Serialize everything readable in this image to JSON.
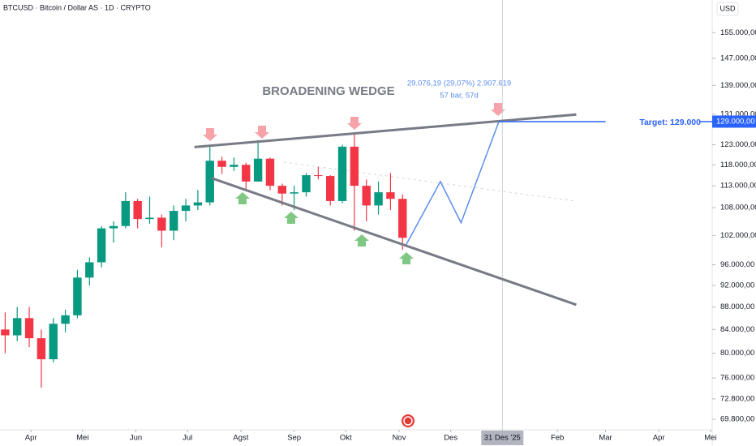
{
  "header": {
    "symbol": "BTCUSD · Bitcoin / Dollar AS · 1D · CRYPTO",
    "currency": "USD"
  },
  "chart_data": {
    "type": "candlestick",
    "log_scale": true,
    "up_color": "#089981",
    "down_color": "#f23645",
    "x": [
      76,
      83,
      90,
      97,
      104,
      111,
      118,
      125,
      132,
      139,
      146,
      153,
      160,
      167,
      174,
      181,
      188,
      195,
      202,
      209,
      216,
      223,
      230,
      237,
      244,
      251,
      258,
      265,
      272,
      279,
      286,
      293,
      300,
      307
    ],
    "open": [
      84000,
      83000,
      86000,
      82500,
      79000,
      85000,
      86500,
      93500,
      96500,
      103500,
      104000,
      109500,
      105500,
      105800,
      103000,
      107300,
      108500,
      109200,
      119000,
      117500,
      118000,
      114000,
      119500,
      113000,
      111200,
      111500,
      115500,
      115300,
      109500,
      122500,
      113000,
      108500,
      111500,
      110000
    ],
    "high": [
      87000,
      88000,
      88000,
      84000,
      86000,
      87500,
      95000,
      97500,
      104000,
      105000,
      111500,
      110000,
      110500,
      106500,
      108500,
      110000,
      112000,
      123000,
      120000,
      119800,
      118500,
      124200,
      119800,
      113500,
      113000,
      116000,
      117500,
      115500,
      123000,
      126000,
      114500,
      114000,
      116000,
      111000
    ],
    "low": [
      80000,
      82000,
      81000,
      74500,
      78500,
      83500,
      86000,
      92000,
      95500,
      100500,
      103500,
      103500,
      104500,
      99500,
      101000,
      105000,
      107500,
      108500,
      115800,
      116500,
      112000,
      114000,
      112000,
      108500,
      107500,
      110500,
      114500,
      108500,
      109000,
      103000,
      105000,
      106500,
      107500,
      99000
    ],
    "close": [
      83000,
      86000,
      82500,
      79000,
      85000,
      86500,
      93500,
      96500,
      103500,
      104000,
      109500,
      105500,
      105800,
      103000,
      107300,
      108500,
      109200,
      119000,
      117500,
      118000,
      114000,
      119500,
      113000,
      111200,
      111500,
      115500,
      115300,
      109500,
      122500,
      113000,
      108500,
      111500,
      110000,
      101500
    ],
    "xlim": [
      73,
      487
    ],
    "ylim": [
      68300,
      165800
    ],
    "xticks": [
      {
        "value": 91,
        "label": "Apr"
      },
      {
        "value": 121,
        "label": "Mei"
      },
      {
        "value": 152,
        "label": "Jun"
      },
      {
        "value": 182,
        "label": "Jul"
      },
      {
        "value": 213,
        "label": "Agst"
      },
      {
        "value": 244,
        "label": "Sep"
      },
      {
        "value": 274,
        "label": "Okt"
      },
      {
        "value": 305,
        "label": "Nov"
      },
      {
        "value": 335,
        "label": "Des"
      },
      {
        "value": 365,
        "label": "31 Des '25"
      },
      {
        "value": 397,
        "label": "Feb"
      },
      {
        "value": 425,
        "label": "Mar"
      },
      {
        "value": 456,
        "label": "Apr"
      },
      {
        "value": 486,
        "label": "Mei"
      }
    ],
    "yticks": [
      {
        "value": 155000,
        "label": "155.000,00"
      },
      {
        "value": 147000,
        "label": "147.000,00"
      },
      {
        "value": 139000,
        "label": "139.000,00"
      },
      {
        "value": 131000,
        "label": "131.000,00"
      },
      {
        "value": 123000,
        "label": "123.000,00"
      },
      {
        "value": 118000,
        "label": "118.000,00"
      },
      {
        "value": 113000,
        "label": "113.000,00"
      },
      {
        "value": 108000,
        "label": "108.000,00"
      },
      {
        "value": 102000,
        "label": "102.000,00"
      },
      {
        "value": 96000,
        "label": "96.000,00"
      },
      {
        "value": 92000,
        "label": "92.000,00"
      },
      {
        "value": 88000,
        "label": "88.000,00"
      },
      {
        "value": 84000,
        "label": "84.000,00"
      },
      {
        "value": 80000,
        "label": "80.000,00"
      },
      {
        "value": 76000,
        "label": "76.000,00"
      },
      {
        "value": 72800,
        "label": "72.800,00"
      },
      {
        "value": 69800,
        "label": "69.800,00"
      }
    ],
    "crosshair_x": 365,
    "annotations": {
      "pattern": "BROADENING WEDGE",
      "measure_line1": "29.076,19 (29,07%) 2.907.619",
      "measure_line2": "57 bar, 57d"
    },
    "upper_line": {
      "x": [
        186,
        408
      ],
      "y": [
        122400,
        130900
      ],
      "color": "#787b86"
    },
    "lower_line": {
      "x": [
        196,
        408
      ],
      "y": [
        114800,
        88400
      ],
      "color": "#787b86"
    },
    "projection": {
      "x": [
        309,
        329,
        341,
        363
      ],
      "y": [
        100000,
        114000,
        104700,
        129000
      ],
      "color": "#5b8def"
    },
    "target": {
      "value": 129000,
      "label": "Target: 129.000",
      "price_label": "129.000,00",
      "x": [
        363,
        425
      ],
      "color": "#2962ff"
    }
  }
}
